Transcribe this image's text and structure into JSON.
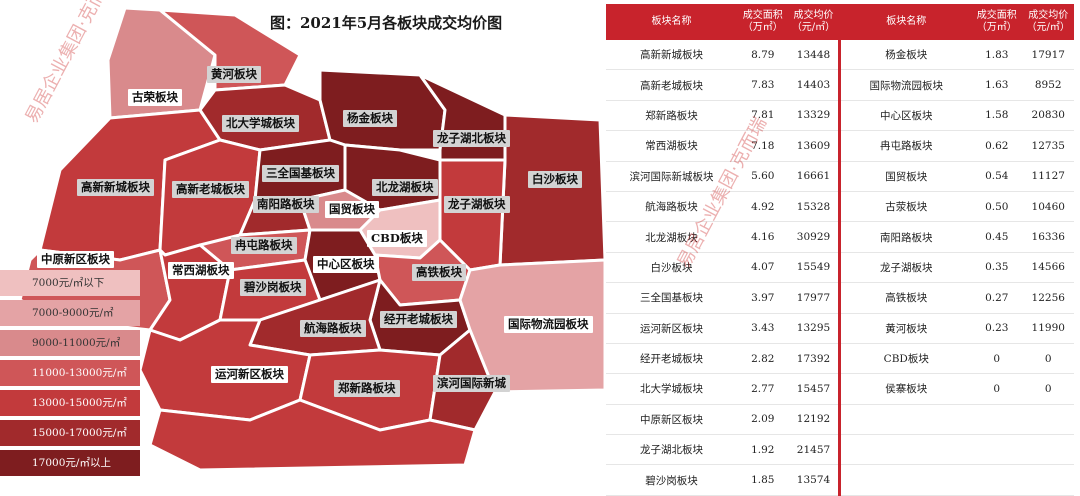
{
  "title": "图：2021年5月各板块成交均价图",
  "colors": {
    "lt7000": "#efc0c0",
    "7000-9000": "#e4a3a5",
    "9000-11000": "#d98a8c",
    "11000-13000": "#cf5658",
    "13000-15000": "#c23a3c",
    "15000-17000": "#a12a2c",
    "gt17000": "#7e1d1f"
  },
  "legend": [
    {
      "label": "7000元/㎡以下",
      "color": "#efc0c0"
    },
    {
      "label": "7000-9000元/㎡",
      "color": "#e4a3a5"
    },
    {
      "label": "9000-11000元/㎡",
      "color": "#d98a8c"
    },
    {
      "label": "11000-13000元/㎡",
      "color": "#cf5658"
    },
    {
      "label": "13000-15000元/㎡",
      "color": "#c23a3c"
    },
    {
      "label": "15000-17000元/㎡",
      "color": "#a12a2c"
    },
    {
      "label": "17000元/㎡以上",
      "color": "#7e1d1f"
    }
  ],
  "map_labels": {
    "huanghe": "黄河板块",
    "gurong": "古荣板块",
    "yangjin": "杨金板块",
    "beida": "北大学城板块",
    "longzihubei": "龙子湖北板块",
    "baisha": "白沙板块",
    "gaoxinxin": "高新新城板块",
    "gaoxinlao": "高新老城板块",
    "sanquan": "三全国基板块",
    "beilonghu": "北龙湖板块",
    "longzihu": "龙子湖板块",
    "nanyang": "南阳路板块",
    "guomao": "国贸板块",
    "cbd": "CBD板块",
    "zhongyuanxin": "中原新区板块",
    "shuangtun": "冉屯路板块",
    "zhongxinqu": "中心区板块",
    "changxihu": "常西湖板块",
    "gaotie": "高铁板块",
    "bishagang": "碧沙岗板块",
    "jingkailao": "经开老城板块",
    "guojiwuliu": "国际物流园板块",
    "hanghai": "航海路板块",
    "yunhe": "运河新区板块",
    "zhengxin": "郑新路板块",
    "binhe": "滨河国际新城"
  },
  "watermark": "易居企业集团·克而瑞",
  "table": {
    "headers": [
      "板块名称",
      "成交面积（万㎡）",
      "成交均价（元/㎡）",
      "板块名称",
      "成交面积（万㎡）",
      "成交均价（元/㎡）"
    ],
    "rows": [
      [
        "高新新城板块",
        "8.79",
        "13448",
        "杨金板块",
        "1.83",
        "17917"
      ],
      [
        "高新老城板块",
        "7.83",
        "14403",
        "国际物流园板块",
        "1.63",
        "8952"
      ],
      [
        "郑新路板块",
        "7.81",
        "13329",
        "中心区板块",
        "1.58",
        "20830"
      ],
      [
        "常西湖板块",
        "7.18",
        "13609",
        "冉屯路板块",
        "0.62",
        "12735"
      ],
      [
        "滨河国际新城板块",
        "5.60",
        "16661",
        "国贸板块",
        "0.54",
        "11127"
      ],
      [
        "航海路板块",
        "4.92",
        "15328",
        "古荥板块",
        "0.50",
        "10460"
      ],
      [
        "北龙湖板块",
        "4.16",
        "30929",
        "南阳路板块",
        "0.45",
        "16336"
      ],
      [
        "白沙板块",
        "4.07",
        "15549",
        "龙子湖板块",
        "0.35",
        "14566"
      ],
      [
        "三全国基板块",
        "3.97",
        "17977",
        "高铁板块",
        "0.27",
        "12256"
      ],
      [
        "运河新区板块",
        "3.43",
        "13295",
        "黄河板块",
        "0.23",
        "11990"
      ],
      [
        "经开老城板块",
        "2.82",
        "17392",
        "CBD板块",
        "0",
        "0"
      ],
      [
        "北大学城板块",
        "2.77",
        "15457",
        "侯寨板块",
        "0",
        "0"
      ],
      [
        "中原新区板块",
        "2.09",
        "12192",
        "",
        "",
        ""
      ],
      [
        "龙子湖北板块",
        "1.92",
        "21457",
        "",
        "",
        ""
      ],
      [
        "碧沙岗板块",
        "1.85",
        "13574",
        "",
        "",
        ""
      ]
    ]
  }
}
